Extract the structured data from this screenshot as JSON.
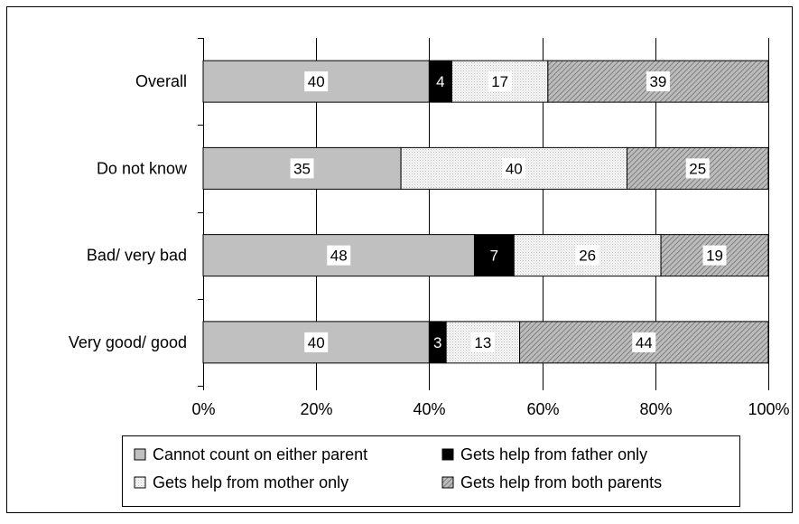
{
  "chart_data": {
    "type": "bar",
    "orientation": "horizontal",
    "stacked": true,
    "categories": [
      "Overall",
      "Do not know",
      "Bad/ very bad",
      "Very good/ good"
    ],
    "series": [
      {
        "name": "Cannot count on either parent",
        "values": [
          40,
          35,
          48,
          40
        ],
        "fill": "#c0c0c0",
        "pattern": "solid"
      },
      {
        "name": "Gets help from father only",
        "values": [
          4,
          0,
          7,
          3
        ],
        "fill": "#000000",
        "pattern": "solid"
      },
      {
        "name": "Gets help from mother only",
        "values": [
          17,
          40,
          26,
          13
        ],
        "fill": "#f2f2f2",
        "pattern": "fine-dots"
      },
      {
        "name": "Gets help from both parents",
        "values": [
          39,
          25,
          19,
          44
        ],
        "fill": "#a0a0a0",
        "pattern": "diagonal-hatch"
      }
    ],
    "xlim": [
      0,
      100
    ],
    "xticks": [
      "0%",
      "20%",
      "40%",
      "60%",
      "80%",
      "100%"
    ],
    "grid": "vertical",
    "legend_position": "bottom",
    "title": "",
    "xlabel": "",
    "ylabel": ""
  }
}
